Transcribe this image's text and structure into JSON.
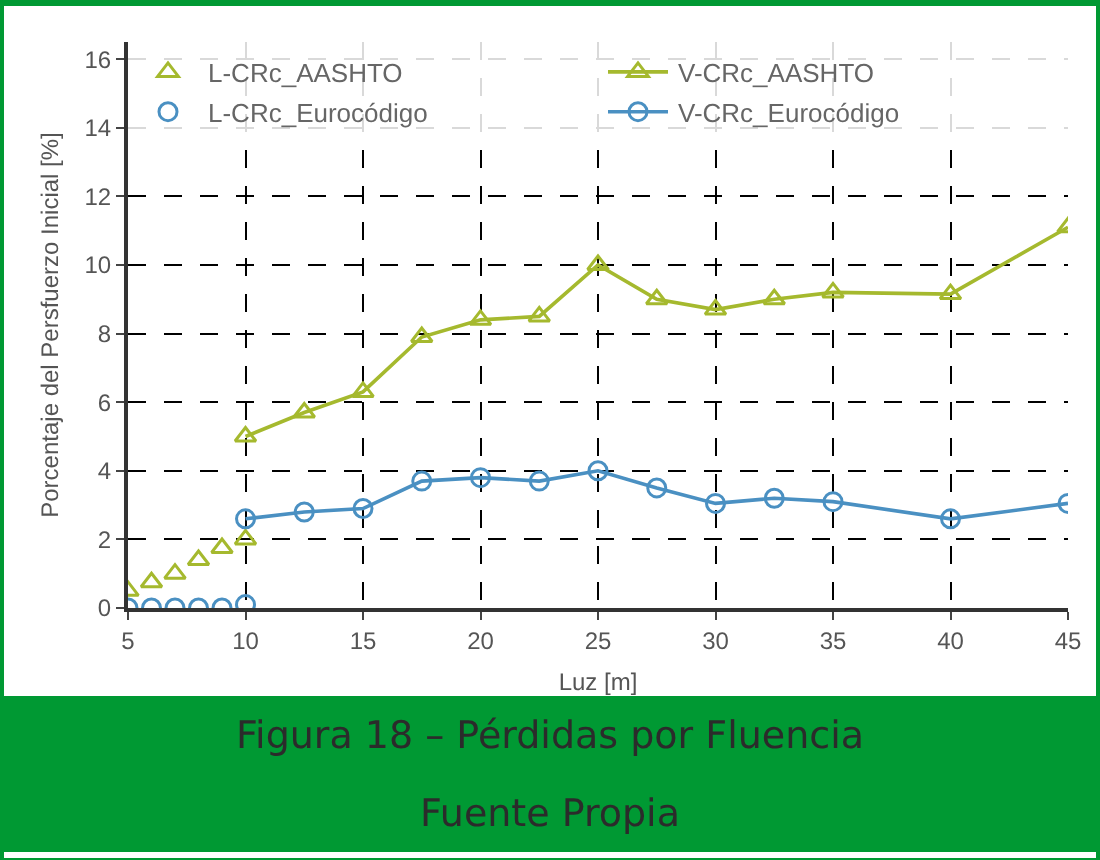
{
  "chart_data": {
    "type": "line",
    "xlabel": "Luz [m]",
    "ylabel": "Porcentaje del Persfuerzo Inicial [%]",
    "annotations": [
      "Figura 18 – Pérdidas por Fluencia",
      "Fuente Propia"
    ],
    "xlim": [
      5,
      45
    ],
    "xticks": [
      5,
      10,
      15,
      20,
      25,
      30,
      35,
      40,
      45
    ],
    "ylim": [
      0,
      16.5
    ],
    "yticks": [
      0,
      2,
      4,
      6,
      8,
      10,
      12,
      14,
      16
    ],
    "grid": true,
    "legend": "top",
    "series": [
      {
        "name": "L-CRc_AASHTO",
        "type": "scatter",
        "marker": "triangle",
        "color": "#a5b92e",
        "x": [
          5,
          6,
          7,
          8,
          9,
          10
        ],
        "values": [
          0.5,
          0.75,
          1.0,
          1.4,
          1.75,
          2.0
        ]
      },
      {
        "name": "V-CRc_AASHTO",
        "type": "line",
        "marker": "triangle",
        "color": "#a5b92e",
        "x": [
          10,
          12.5,
          15,
          17.5,
          20,
          22.5,
          25,
          27.5,
          30,
          32.5,
          35,
          40,
          45
        ],
        "values": [
          5.0,
          5.7,
          6.3,
          7.9,
          8.4,
          8.5,
          10.0,
          9.0,
          8.7,
          9.0,
          9.2,
          9.15,
          11.1
        ]
      },
      {
        "name": "L-CRc_Eurocódigo",
        "type": "scatter",
        "marker": "circle",
        "color": "#4a90c2",
        "x": [
          5,
          6,
          7,
          8,
          9,
          10
        ],
        "values": [
          0,
          0,
          0,
          0,
          0,
          0.1
        ]
      },
      {
        "name": "V-CRc_Eurocódigo",
        "type": "line",
        "marker": "circle",
        "color": "#4a90c2",
        "x": [
          10,
          12.5,
          15,
          17.5,
          20,
          22.5,
          25,
          27.5,
          30,
          32.5,
          35,
          40,
          45
        ],
        "values": [
          2.6,
          2.8,
          2.9,
          3.7,
          3.8,
          3.7,
          4.0,
          3.5,
          3.05,
          3.2,
          3.1,
          2.6,
          3.05
        ]
      }
    ]
  }
}
